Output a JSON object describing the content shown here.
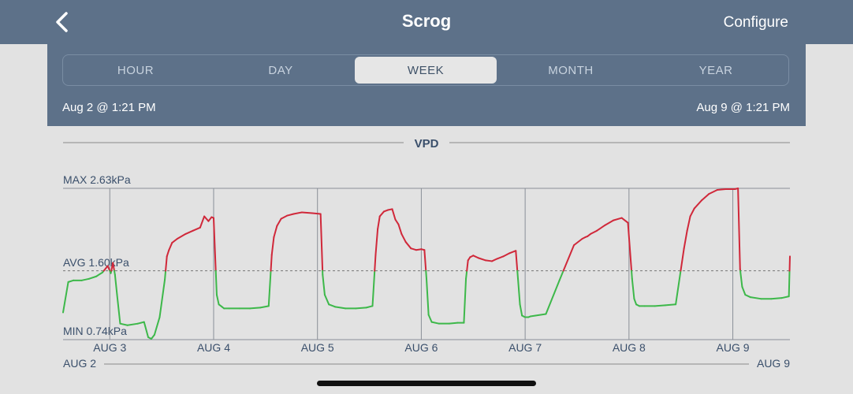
{
  "nav": {
    "title": "Scrog",
    "configure_label": "Configure",
    "back_icon": "chevron-left-icon"
  },
  "segments": [
    "HOUR",
    "DAY",
    "WEEK",
    "MONTH",
    "YEAR"
  ],
  "selected_segment": "WEEK",
  "range": {
    "start": "Aug 2 @ 1:21 PM",
    "end": "Aug 9 @ 1:21 PM"
  },
  "colors": {
    "above_avg": "#d0283a",
    "below_avg": "#3db84a",
    "header": "#5d7189"
  },
  "chart_data": {
    "type": "line",
    "title": "VPD",
    "max_label": "MAX 2.63kPa",
    "avg_label": "AVG 1.60kPa",
    "min_label": "MIN 0.74kPa",
    "unit": "kPa",
    "ylim": [
      0.74,
      2.63
    ],
    "avg": 1.6,
    "x_unit": "days since Aug 2 @ 1:21 PM",
    "xlim": [
      0,
      7
    ],
    "x_tick_labels": [
      "AUG 3",
      "AUG 4",
      "AUG 5",
      "AUG 6",
      "AUG 7",
      "AUG 8",
      "AUG 9"
    ],
    "x_ticks": [
      0.45,
      1.45,
      2.45,
      3.45,
      4.45,
      5.45,
      6.45
    ],
    "bottom_start_label": "AUG 2",
    "bottom_end_label": "AUG 9",
    "x": [
      0.0,
      0.05,
      0.1,
      0.18,
      0.25,
      0.32,
      0.38,
      0.43,
      0.46,
      0.48,
      0.5,
      0.52,
      0.55,
      0.62,
      0.72,
      0.78,
      0.82,
      0.85,
      0.88,
      0.93,
      0.98,
      1.0,
      1.02,
      1.05,
      1.1,
      1.18,
      1.25,
      1.32,
      1.36,
      1.4,
      1.43,
      1.45,
      1.48,
      1.5,
      1.53,
      1.55,
      1.6,
      1.7,
      1.8,
      1.9,
      1.98,
      2.01,
      2.03,
      2.06,
      2.1,
      2.16,
      2.22,
      2.3,
      2.4,
      2.48,
      2.5,
      2.52,
      2.56,
      2.62,
      2.72,
      2.82,
      2.92,
      2.98,
      3.01,
      3.03,
      3.05,
      3.09,
      3.13,
      3.17,
      3.2,
      3.23,
      3.26,
      3.3,
      3.35,
      3.4,
      3.45,
      3.48,
      3.5,
      3.52,
      3.55,
      3.62,
      3.72,
      3.8,
      3.86,
      3.88,
      3.9,
      3.92,
      3.95,
      4.0,
      4.07,
      4.13,
      4.18,
      4.24,
      4.3,
      4.36,
      4.4,
      4.42,
      4.45,
      4.48,
      4.5,
      4.55,
      4.65,
      4.78,
      4.92,
      5.0,
      5.03,
      5.05,
      5.08,
      5.14,
      5.22,
      5.3,
      5.38,
      5.44,
      5.48,
      5.5,
      5.52,
      5.55,
      5.6,
      5.7,
      5.8,
      5.9,
      5.98,
      6.01,
      6.04,
      6.08,
      6.15,
      6.22,
      6.3,
      6.38,
      6.47,
      6.5,
      6.52,
      6.54,
      6.57,
      6.62,
      6.72,
      6.82,
      6.92,
      6.99,
      7.0
    ],
    "y": [
      1.08,
      1.46,
      1.48,
      1.48,
      1.5,
      1.53,
      1.58,
      1.66,
      1.57,
      1.7,
      1.55,
      1.3,
      0.94,
      0.92,
      0.94,
      0.96,
      0.77,
      0.75,
      0.8,
      1.02,
      1.49,
      1.78,
      1.86,
      1.95,
      2.0,
      2.06,
      2.1,
      2.14,
      2.28,
      2.22,
      2.27,
      2.26,
      1.3,
      1.18,
      1.15,
      1.13,
      1.13,
      1.13,
      1.13,
      1.14,
      1.16,
      1.8,
      2.02,
      2.16,
      2.25,
      2.29,
      2.31,
      2.33,
      2.32,
      2.31,
      1.55,
      1.3,
      1.18,
      1.15,
      1.13,
      1.13,
      1.14,
      1.16,
      1.8,
      2.12,
      2.28,
      2.34,
      2.36,
      2.37,
      2.24,
      2.18,
      2.06,
      1.96,
      1.88,
      1.86,
      1.87,
      1.86,
      1.5,
      1.05,
      0.96,
      0.94,
      0.94,
      0.95,
      0.95,
      1.5,
      1.73,
      1.77,
      1.79,
      1.76,
      1.73,
      1.72,
      1.75,
      1.78,
      1.82,
      1.85,
      1.18,
      1.04,
      1.02,
      1.02,
      1.03,
      1.04,
      1.06,
      1.48,
      1.92,
      2.0,
      2.02,
      2.03,
      2.06,
      2.1,
      2.17,
      2.23,
      2.26,
      2.2,
      1.5,
      1.25,
      1.18,
      1.16,
      1.16,
      1.16,
      1.17,
      1.18,
      1.88,
      2.1,
      2.28,
      2.38,
      2.48,
      2.56,
      2.61,
      2.62,
      2.62,
      2.63,
      1.62,
      1.4,
      1.3,
      1.27,
      1.25,
      1.25,
      1.26,
      1.28,
      1.78
    ]
  }
}
